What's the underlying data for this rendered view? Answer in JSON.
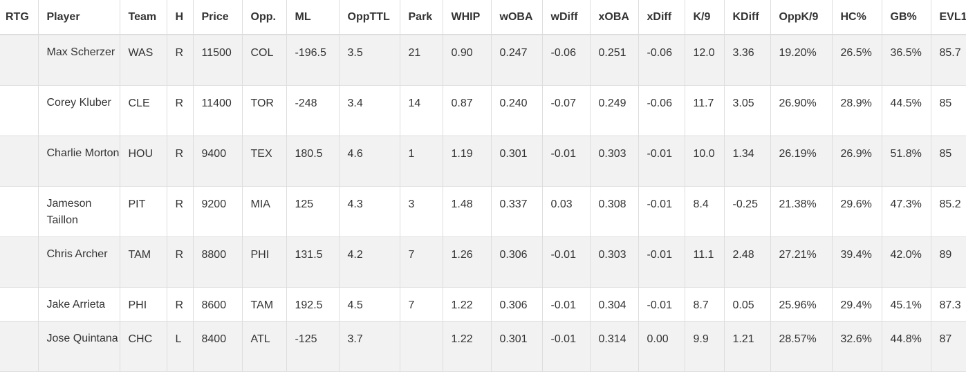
{
  "columns": [
    "RTG",
    "Player",
    "Team",
    "H",
    "Price",
    "Opp.",
    "ML",
    "OppTTL",
    "Park",
    "WHIP",
    "wOBA",
    "wDiff",
    "xOBA",
    "xDiff",
    "K/9",
    "KDiff",
    "OppK/9",
    "HC%",
    "GB%",
    "EVL1"
  ],
  "rows": [
    {
      "rtg": "",
      "player": "Max Scherzer",
      "team": "WAS",
      "h": "R",
      "price": "11500",
      "opp": "COL",
      "ml": "-196.5",
      "oppttl": "3.5",
      "park": "21",
      "whip": "0.90",
      "woba": "0.247",
      "wdiff": "-0.06",
      "xoba": "0.251",
      "xdiff": "-0.06",
      "k9": "12.0",
      "kdiff": "3.36",
      "oppk9": "19.20%",
      "hc": "26.5%",
      "gb": "36.5%",
      "evl": "85.7"
    },
    {
      "rtg": "",
      "player": "Corey Kluber",
      "team": "CLE",
      "h": "R",
      "price": "11400",
      "opp": "TOR",
      "ml": "-248",
      "oppttl": "3.4",
      "park": "14",
      "whip": "0.87",
      "woba": "0.240",
      "wdiff": "-0.07",
      "xoba": "0.249",
      "xdiff": "-0.06",
      "k9": "11.7",
      "kdiff": "3.05",
      "oppk9": "26.90%",
      "hc": "28.9%",
      "gb": "44.5%",
      "evl": "85"
    },
    {
      "rtg": "",
      "player": "Charlie Morton",
      "team": "HOU",
      "h": "R",
      "price": "9400",
      "opp": "TEX",
      "ml": "180.5",
      "oppttl": "4.6",
      "park": "1",
      "whip": "1.19",
      "woba": "0.301",
      "wdiff": "-0.01",
      "xoba": "0.303",
      "xdiff": "-0.01",
      "k9": "10.0",
      "kdiff": "1.34",
      "oppk9": "26.19%",
      "hc": "26.9%",
      "gb": "51.8%",
      "evl": "85"
    },
    {
      "rtg": "",
      "player": "Jameson Taillon",
      "team": "PIT",
      "h": "R",
      "price": "9200",
      "opp": "MIA",
      "ml": "125",
      "oppttl": "4.3",
      "park": "3",
      "whip": "1.48",
      "woba": "0.337",
      "wdiff": "0.03",
      "xoba": "0.308",
      "xdiff": "-0.01",
      "k9": "8.4",
      "kdiff": "-0.25",
      "oppk9": "21.38%",
      "hc": "29.6%",
      "gb": "47.3%",
      "evl": "85.2"
    },
    {
      "rtg": "",
      "player": "Chris Archer",
      "team": "TAM",
      "h": "R",
      "price": "8800",
      "opp": "PHI",
      "ml": "131.5",
      "oppttl": "4.2",
      "park": "7",
      "whip": "1.26",
      "woba": "0.306",
      "wdiff": "-0.01",
      "xoba": "0.303",
      "xdiff": "-0.01",
      "k9": "11.1",
      "kdiff": "2.48",
      "oppk9": "27.21%",
      "hc": "39.4%",
      "gb": "42.0%",
      "evl": "89"
    },
    {
      "rtg": "",
      "player": "Jake Arrieta",
      "team": "PHI",
      "h": "R",
      "price": "8600",
      "opp": "TAM",
      "ml": "192.5",
      "oppttl": "4.5",
      "park": "7",
      "whip": "1.22",
      "woba": "0.306",
      "wdiff": "-0.01",
      "xoba": "0.304",
      "xdiff": "-0.01",
      "k9": "8.7",
      "kdiff": "0.05",
      "oppk9": "25.96%",
      "hc": "29.4%",
      "gb": "45.1%",
      "evl": "87.3"
    },
    {
      "rtg": "",
      "player": "Jose Quintana",
      "team": "CHC",
      "h": "L",
      "price": "8400",
      "opp": "ATL",
      "ml": "-125",
      "oppttl": "3.7",
      "park": "",
      "whip": "1.22",
      "woba": "0.301",
      "wdiff": "-0.01",
      "xoba": "0.314",
      "xdiff": "0.00",
      "k9": "9.9",
      "kdiff": "1.21",
      "oppk9": "28.57%",
      "hc": "32.6%",
      "gb": "44.8%",
      "evl": "87"
    }
  ]
}
